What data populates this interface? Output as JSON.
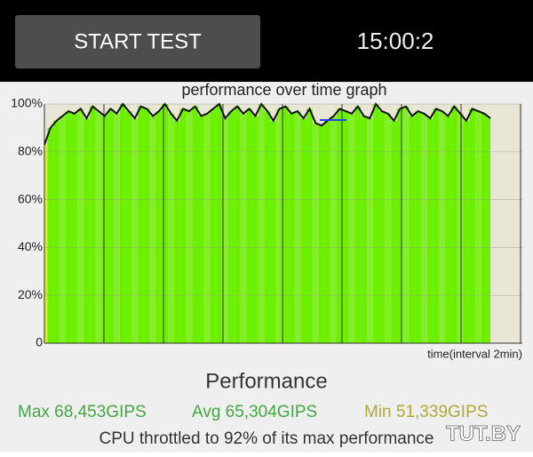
{
  "header": {
    "button": "START TEST",
    "timer": "15:00:2"
  },
  "chart_data": {
    "type": "line",
    "title": "performance over time graph",
    "x_label": "time(interval 2min)",
    "values": [
      83,
      90,
      93,
      95,
      97,
      96,
      98,
      94,
      99,
      97,
      95,
      98,
      96,
      100,
      97,
      94,
      99,
      98,
      95,
      97,
      100,
      96,
      93,
      98,
      97,
      99,
      95,
      96,
      98,
      100,
      94,
      97,
      99,
      96,
      98,
      95,
      100,
      97,
      93,
      98,
      99,
      96,
      97,
      94,
      98,
      92,
      91,
      93,
      95,
      98,
      97,
      96,
      99,
      95,
      94,
      100,
      97,
      96,
      93,
      98,
      99,
      95,
      97,
      96,
      94,
      98,
      97,
      95,
      99,
      96,
      93,
      98,
      97,
      96,
      94
    ],
    "color": "#6cf000",
    "line_color": "#111111",
    "ylim": [
      0,
      100
    ],
    "yticks": [
      0,
      {
        "value": 20,
        "label": "20%"
      },
      {
        "value": 40,
        "label": "40%"
      },
      {
        "value": 60,
        "label": "60%"
      },
      {
        "value": 80,
        "label": "80%"
      },
      {
        "value": 100,
        "label": "100%"
      }
    ],
    "grid": true
  },
  "results": {
    "heading": "Performance",
    "max": "Max 68,453GIPS",
    "avg": "Avg 65,304GIPS",
    "min": "Min 51,339GIPS",
    "summary": "CPU throttled to 92% of its max performance"
  },
  "watermark": "TUT.BY"
}
